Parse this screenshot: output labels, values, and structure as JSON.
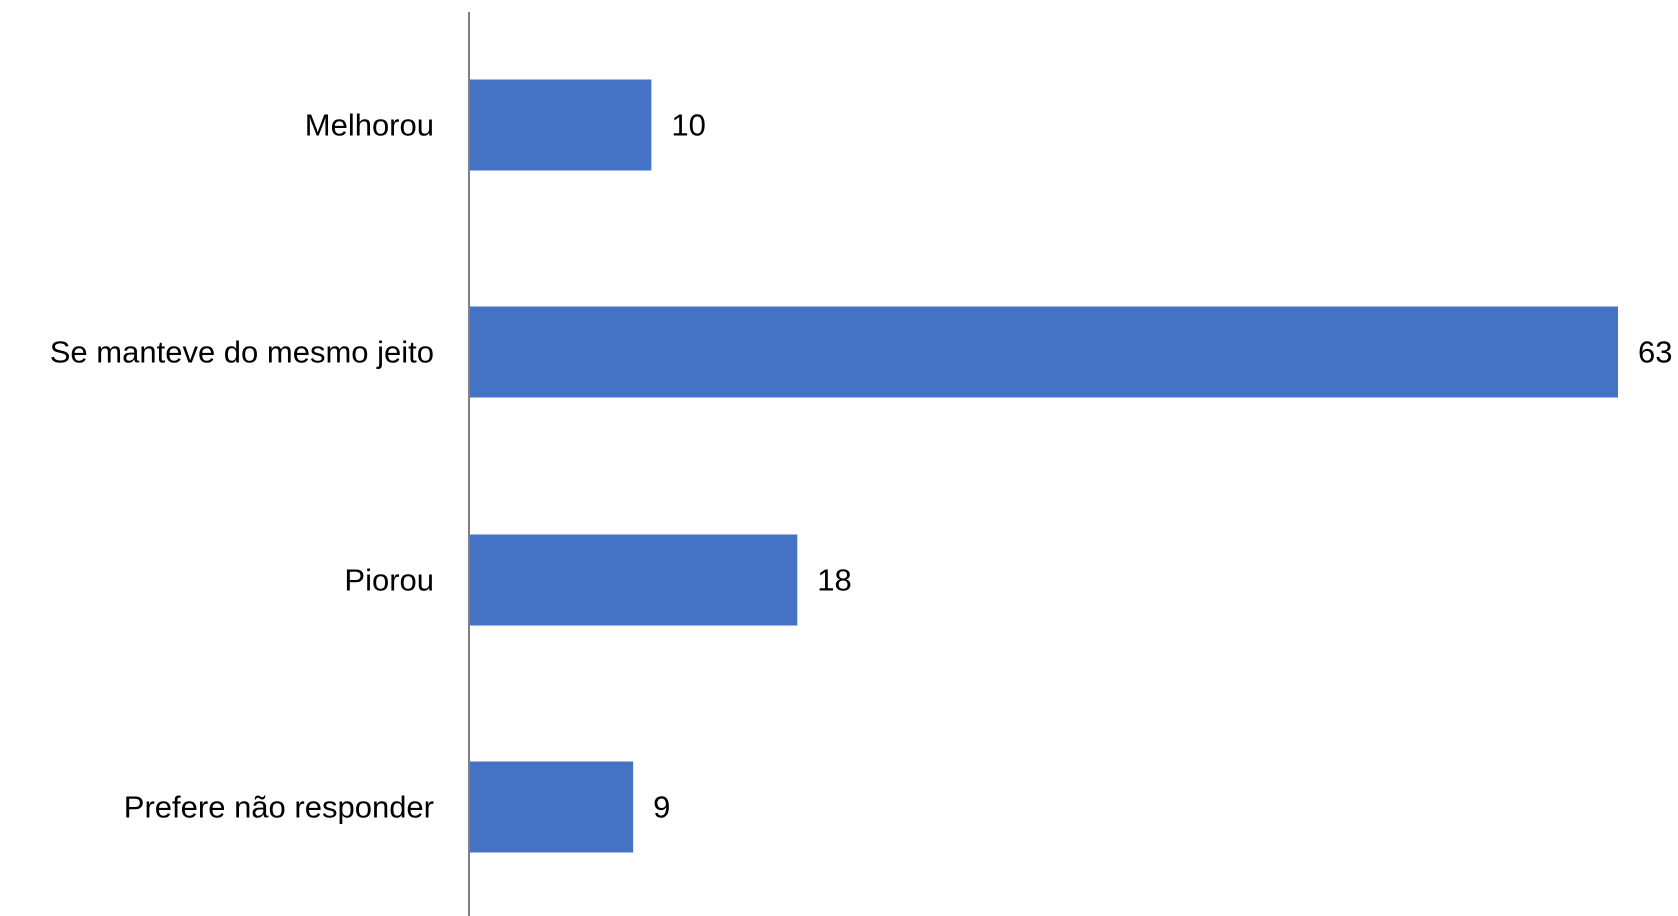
{
  "chart_data": {
    "type": "bar",
    "orientation": "horizontal",
    "categories": [
      "Melhorou",
      "Se manteve do mesmo jeito",
      "Piorou",
      "Prefere não responder"
    ],
    "values": [
      10,
      63,
      18,
      9
    ],
    "data_labels": [
      "10",
      "63",
      "18",
      "9"
    ],
    "xlim": [
      0,
      63
    ],
    "grid": false,
    "legend": "none",
    "colors": {
      "bar": "#4472C4",
      "axis": "#808080",
      "text": "#000000"
    }
  }
}
